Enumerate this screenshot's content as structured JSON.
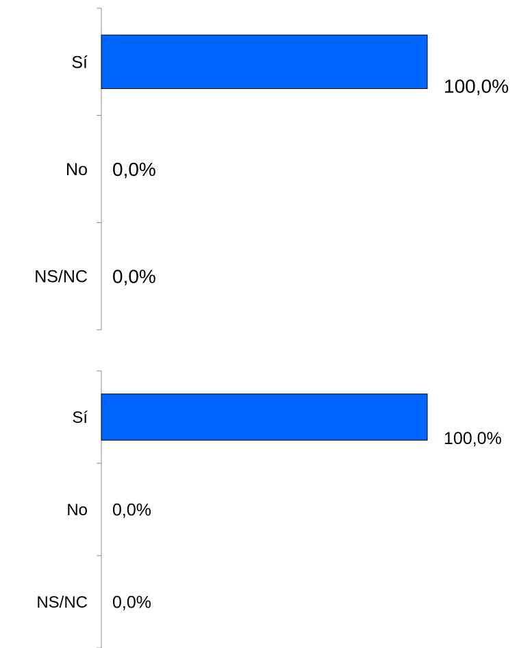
{
  "bar_color": "#0066ff",
  "chart_data": [
    {
      "type": "bar",
      "orientation": "horizontal",
      "categories": [
        "Sí",
        "No",
        "NS/NC"
      ],
      "values": [
        100.0,
        0.0,
        0.0
      ],
      "value_labels": [
        "100,0%",
        "0,0%",
        "0,0%"
      ],
      "xlim": [
        0,
        100
      ],
      "grid": false,
      "legend": "none"
    },
    {
      "type": "bar",
      "orientation": "horizontal",
      "categories": [
        "Sí",
        "No",
        "NS/NC"
      ],
      "values": [
        100.0,
        0.0,
        0.0
      ],
      "value_labels": [
        "100,0%",
        "0,0%",
        "0,0%"
      ],
      "xlim": [
        0,
        100
      ],
      "grid": false,
      "legend": "none"
    }
  ]
}
